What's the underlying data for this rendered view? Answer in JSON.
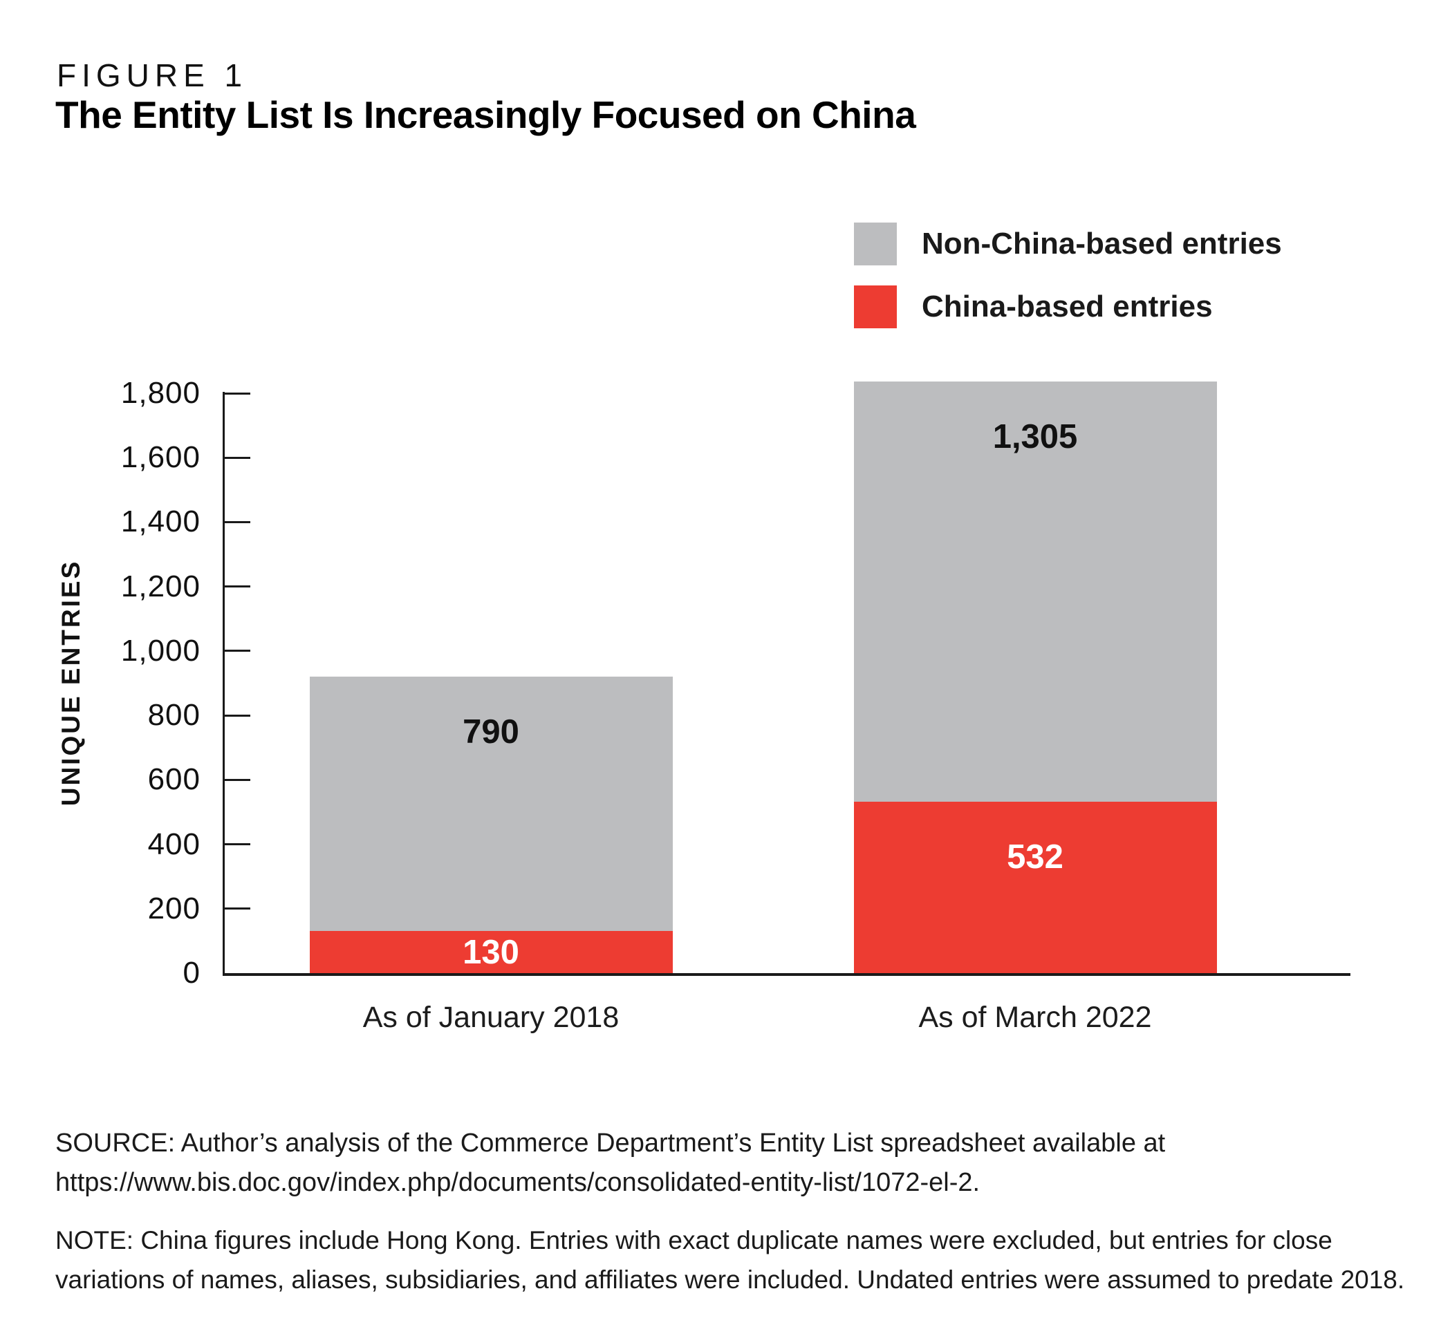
{
  "figure": {
    "label": "FIGURE 1",
    "title": "The Entity List Is Increasingly Focused on China"
  },
  "legend": [
    {
      "label": "Non-China-based entries",
      "color": "#bcbdbf"
    },
    {
      "label": "China-based entries",
      "color": "#ed3c32"
    }
  ],
  "chart_data": {
    "type": "bar",
    "stacked": true,
    "title": "The Entity List Is Increasingly Focused on China",
    "categories": [
      "As of January 2018",
      "As of March 2022"
    ],
    "series": [
      {
        "name": "China-based entries",
        "color": "#ed3c32",
        "label_color": "#ffffff",
        "values": [
          130,
          532
        ],
        "labels": [
          "130",
          "532"
        ]
      },
      {
        "name": "Non-China-based entries",
        "color": "#bcbdbf",
        "label_color": "#111111",
        "values": [
          790,
          1305
        ],
        "labels": [
          "790",
          "1,305"
        ]
      }
    ],
    "totals": [
      920,
      1837
    ],
    "xlabel": "",
    "ylabel": "UNIQUE ENTRIES",
    "ylim": [
      0,
      1800
    ],
    "ytick_step": 200,
    "ytick_labels": [
      "0",
      "200",
      "400",
      "600",
      "800",
      "1,000",
      "1,200",
      "1,400",
      "1,600",
      "1,800"
    ],
    "grid": false,
    "legend_position": "top-right"
  },
  "source": "SOURCE: Author’s analysis of the Commerce Department’s Entity List spreadsheet available at https://www.bis.doc.gov/index.php/documents/consolidated-entity-list/1072-el-2.",
  "note": "NOTE: China figures include Hong Kong. Entries with exact duplicate names were excluded, but entries for close variations of names, aliases, subsidiaries, and affiliates were included. Undated entries were assumed to predate 2018."
}
